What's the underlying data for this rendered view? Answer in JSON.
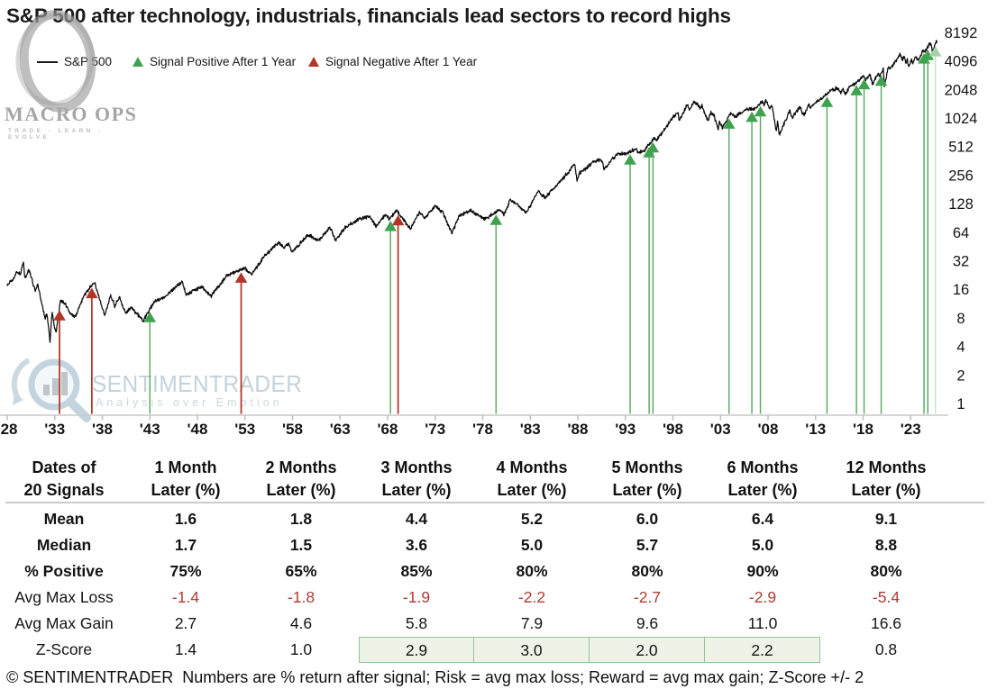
{
  "title": "S&P 500 after technology, industrials, financials lead sectors to record highs",
  "legend": {
    "sp500": "S&P 500",
    "positive": "Signal Positive After 1 Year",
    "negative": "Signal Negative After 1 Year"
  },
  "colors": {
    "positive_green": "#3fa24e",
    "negative_red": "#b23527",
    "loss_text_red": "#ae3c33",
    "zscore_highlight_bg": "#edf3e6",
    "zscore_highlight_border": "#96c296",
    "price_line": "#0b0b0b",
    "axis_gray": "#c9c9c9"
  },
  "watermark_macroops": {
    "name": "MACRO OPS",
    "tagline": "TRADE - LEARN - EVOLVE"
  },
  "watermark_sentimentrader": {
    "name": "SENTIMENTRADER",
    "tagline": "Analysis over Emotion"
  },
  "chart_data": {
    "type": "line",
    "title": "S&P 500 after technology, industrials, financials lead sectors to record highs",
    "series_name": "S&P 500",
    "y_scale": "log2",
    "y_ticks": [
      8192,
      4096,
      2048,
      1024,
      512,
      256,
      128,
      64,
      32,
      16,
      8,
      4,
      2,
      1
    ],
    "x_ticks": [
      "'28",
      "'33",
      "'38",
      "'43",
      "'48",
      "'53",
      "'58",
      "'63",
      "'68",
      "'73",
      "'78",
      "'83",
      "'88",
      "'93",
      "'98",
      "'03",
      "'08",
      "'13",
      "'18",
      "'23"
    ],
    "x_tick_years": [
      1928,
      1933,
      1938,
      1943,
      1948,
      1953,
      1958,
      1963,
      1968,
      1973,
      1978,
      1983,
      1988,
      1993,
      1998,
      2003,
      2008,
      2013,
      2018,
      2023
    ],
    "x_range": [
      1928,
      2026
    ],
    "sp500_anchors": [
      [
        1928.0,
        17.6
      ],
      [
        1928.6,
        20.5
      ],
      [
        1929.0,
        24.5
      ],
      [
        1929.4,
        22.9
      ],
      [
        1929.7,
        31.9
      ],
      [
        1929.87,
        20.5
      ],
      [
        1930.3,
        25.9
      ],
      [
        1930.95,
        15.3
      ],
      [
        1931.2,
        18.2
      ],
      [
        1931.95,
        8.0
      ],
      [
        1932.2,
        8.9
      ],
      [
        1932.5,
        4.4
      ],
      [
        1932.72,
        9.3
      ],
      [
        1932.95,
        6.6
      ],
      [
        1933.15,
        5.7
      ],
      [
        1933.6,
        12.2
      ],
      [
        1934.1,
        11.3
      ],
      [
        1934.6,
        8.9
      ],
      [
        1935.2,
        8.3
      ],
      [
        1936.0,
        13.3
      ],
      [
        1936.9,
        17.7
      ],
      [
        1937.2,
        18.7
      ],
      [
        1938.25,
        8.5
      ],
      [
        1938.9,
        13.8
      ],
      [
        1939.3,
        10.6
      ],
      [
        1939.8,
        13.2
      ],
      [
        1940.45,
        8.9
      ],
      [
        1941.0,
        10.4
      ],
      [
        1942.3,
        7.5
      ],
      [
        1943.5,
        12.0
      ],
      [
        1944.5,
        13.1
      ],
      [
        1945.95,
        17.7
      ],
      [
        1946.4,
        19.3
      ],
      [
        1946.8,
        14.1
      ],
      [
        1948.45,
        16.9
      ],
      [
        1949.45,
        13.6
      ],
      [
        1950.5,
        18.5
      ],
      [
        1951.1,
        22.5
      ],
      [
        1952.05,
        24.5
      ],
      [
        1953.0,
        26.7
      ],
      [
        1953.7,
        22.7
      ],
      [
        1955.1,
        36.5
      ],
      [
        1956.6,
        49.7
      ],
      [
        1957.1,
        43.0
      ],
      [
        1957.55,
        49.1
      ],
      [
        1957.95,
        39.0
      ],
      [
        1959.6,
        60.0
      ],
      [
        1960.8,
        52.3
      ],
      [
        1961.95,
        72.6
      ],
      [
        1962.5,
        52.3
      ],
      [
        1963.6,
        73.0
      ],
      [
        1965.1,
        89.0
      ],
      [
        1966.1,
        94.1
      ],
      [
        1966.8,
        73.2
      ],
      [
        1967.75,
        97.6
      ],
      [
        1968.2,
        87.7
      ],
      [
        1968.95,
        108.4
      ],
      [
        1970.4,
        69.3
      ],
      [
        1971.35,
        104.8
      ],
      [
        1971.9,
        90.2
      ],
      [
        1973.0,
        120.2
      ],
      [
        1973.8,
        103.4
      ],
      [
        1974.75,
        62.3
      ],
      [
        1975.55,
        95.6
      ],
      [
        1976.75,
        107.8
      ],
      [
        1978.2,
        86.9
      ],
      [
        1979.8,
        111.3
      ],
      [
        1980.25,
        98.2
      ],
      [
        1980.9,
        140.5
      ],
      [
        1981.7,
        122.8
      ],
      [
        1982.6,
        102.4
      ],
      [
        1983.8,
        172.7
      ],
      [
        1984.55,
        147.8
      ],
      [
        1986.7,
        254.0
      ],
      [
        1987.1,
        281.2
      ],
      [
        1987.65,
        336.8
      ],
      [
        1987.92,
        223.9
      ],
      [
        1988.2,
        267.8
      ],
      [
        1989.75,
        359.8
      ],
      [
        1990.5,
        368.9
      ],
      [
        1990.78,
        295.5
      ],
      [
        1992.05,
        420.8
      ],
      [
        1993.1,
        435.4
      ],
      [
        1994.1,
        482.0
      ],
      [
        1994.3,
        438.9
      ],
      [
        1995.0,
        465.3
      ],
      [
        1996.05,
        636.0
      ],
      [
        1996.3,
        607.0
      ],
      [
        1997.2,
        786.2
      ],
      [
        1997.8,
        983.8
      ],
      [
        1998.52,
        1186.8
      ],
      [
        1998.67,
        957.3
      ],
      [
        1999.5,
        1418.8
      ],
      [
        1999.78,
        1247.4
      ],
      [
        2000.22,
        1527.5
      ],
      [
        2000.9,
        1305.0
      ],
      [
        2001.05,
        1373.7
      ],
      [
        2001.7,
        944.8
      ],
      [
        2001.95,
        1172.5
      ],
      [
        2002.3,
        1106.6
      ],
      [
        2002.75,
        776.8
      ],
      [
        2002.9,
        936.3
      ],
      [
        2003.2,
        800.7
      ],
      [
        2004.0,
        1131.1
      ],
      [
        2004.6,
        1063.2
      ],
      [
        2005.55,
        1245.0
      ],
      [
        2006.35,
        1280.2
      ],
      [
        2006.5,
        1236.9
      ],
      [
        2007.4,
        1530.6
      ],
      [
        2007.6,
        1406.7
      ],
      [
        2007.75,
        1565.2
      ],
      [
        2008.2,
        1273.4
      ],
      [
        2008.4,
        1426.6
      ],
      [
        2008.87,
        741.0
      ],
      [
        2009.0,
        934.7
      ],
      [
        2009.18,
        676.5
      ],
      [
        2010.3,
        1217.3
      ],
      [
        2010.52,
        1022.6
      ],
      [
        2011.35,
        1363.6
      ],
      [
        2011.76,
        1074.8
      ],
      [
        2012.3,
        1419.0
      ],
      [
        2012.43,
        1278.0
      ],
      [
        2013.0,
        1480.4
      ],
      [
        2014.7,
        2011.4
      ],
      [
        2015.4,
        2130.8
      ],
      [
        2015.65,
        1867.6
      ],
      [
        2015.85,
        2109.8
      ],
      [
        2016.12,
        1829.1
      ],
      [
        2016.6,
        2190.2
      ],
      [
        2017.0,
        2278.9
      ],
      [
        2018.07,
        2872.9
      ],
      [
        2018.27,
        2581.0
      ],
      [
        2018.7,
        2930.8
      ],
      [
        2018.98,
        2351.1
      ],
      [
        2019.6,
        3025.9
      ],
      [
        2019.73,
        2847.1
      ],
      [
        2020.12,
        3386.2
      ],
      [
        2020.23,
        2237.4
      ],
      [
        2020.68,
        3580.8
      ],
      [
        2020.75,
        3269.9
      ],
      [
        2021.9,
        4793.1
      ],
      [
        2022.15,
        4170.7
      ],
      [
        2022.32,
        4631.6
      ],
      [
        2022.48,
        3900.8
      ],
      [
        2022.62,
        4305.2
      ],
      [
        2022.78,
        3577.0
      ],
      [
        2023.08,
        4179.8
      ],
      [
        2023.2,
        3855.8
      ],
      [
        2023.58,
        4588.9
      ],
      [
        2023.83,
        4117.4
      ],
      [
        2024.25,
        5254.3
      ],
      [
        2024.6,
        5277.5
      ],
      [
        2024.95,
        6090.3
      ],
      [
        2025.15,
        6144.2
      ],
      [
        2025.3,
        4982.8
      ],
      [
        2025.6,
        6280.0
      ],
      [
        2025.78,
        6700.0
      ]
    ],
    "signals": [
      {
        "year": 1933.5,
        "type": "negative"
      },
      {
        "year": 1936.9,
        "type": "negative"
      },
      {
        "year": 1952.6,
        "type": "negative"
      },
      {
        "year": 1969.1,
        "type": "negative"
      },
      {
        "year": 1943.0,
        "type": "positive"
      },
      {
        "year": 1968.3,
        "type": "positive"
      },
      {
        "year": 1979.4,
        "type": "positive"
      },
      {
        "year": 1993.5,
        "type": "positive"
      },
      {
        "year": 1995.5,
        "type": "positive"
      },
      {
        "year": 1995.9,
        "type": "positive"
      },
      {
        "year": 2003.9,
        "type": "positive"
      },
      {
        "year": 2006.3,
        "type": "positive"
      },
      {
        "year": 2007.2,
        "type": "positive"
      },
      {
        "year": 2014.2,
        "type": "positive"
      },
      {
        "year": 2017.3,
        "type": "positive"
      },
      {
        "year": 2018.1,
        "type": "positive"
      },
      {
        "year": 2019.9,
        "type": "positive"
      },
      {
        "year": 2024.4,
        "type": "positive"
      },
      {
        "year": 2024.8,
        "type": "positive"
      },
      {
        "year": 2025.6,
        "type": "positive",
        "faint": true
      }
    ],
    "legend": [
      "S&P 500",
      "Signal Positive After 1 Year",
      "Signal Negative After 1 Year"
    ]
  },
  "table": {
    "columns": [
      {
        "line1": "Dates of",
        "line2": "20 Signals"
      },
      {
        "line1": "1 Month",
        "line2": "Later (%)"
      },
      {
        "line1": "2 Months",
        "line2": "Later (%)"
      },
      {
        "line1": "3 Months",
        "line2": "Later (%)"
      },
      {
        "line1": "4 Months",
        "line2": "Later (%)"
      },
      {
        "line1": "5 Months",
        "line2": "Later (%)"
      },
      {
        "line1": "6 Months",
        "line2": "Later (%)"
      },
      {
        "line1": "12 Months",
        "line2": "Later (%)"
      }
    ],
    "rows": [
      {
        "label": "Mean",
        "values": [
          "1.6",
          "1.8",
          "4.4",
          "5.2",
          "6.0",
          "6.4",
          "9.1"
        ]
      },
      {
        "label": "Median",
        "values": [
          "1.7",
          "1.5",
          "3.6",
          "5.0",
          "5.7",
          "5.0",
          "8.8"
        ]
      },
      {
        "label": "% Positive",
        "values": [
          "75%",
          "65%",
          "85%",
          "80%",
          "80%",
          "90%",
          "80%"
        ]
      },
      {
        "label": "Avg Max Loss",
        "values": [
          "-1.4",
          "-1.8",
          "-1.9",
          "-2.2",
          "-2.7",
          "-2.9",
          "-5.4"
        ]
      },
      {
        "label": "Avg Max Gain",
        "values": [
          "2.7",
          "4.6",
          "5.8",
          "7.9",
          "9.6",
          "11.0",
          "16.6"
        ]
      },
      {
        "label": "Z-Score",
        "values": [
          "1.4",
          "1.0",
          "2.9",
          "3.0",
          "2.0",
          "2.2",
          "0.8"
        ]
      }
    ]
  },
  "footnote": "© SENTIMENTRADER  Numbers are % return after signal; Risk = avg max loss; Reward = avg max gain; Z-Score +/- 2"
}
